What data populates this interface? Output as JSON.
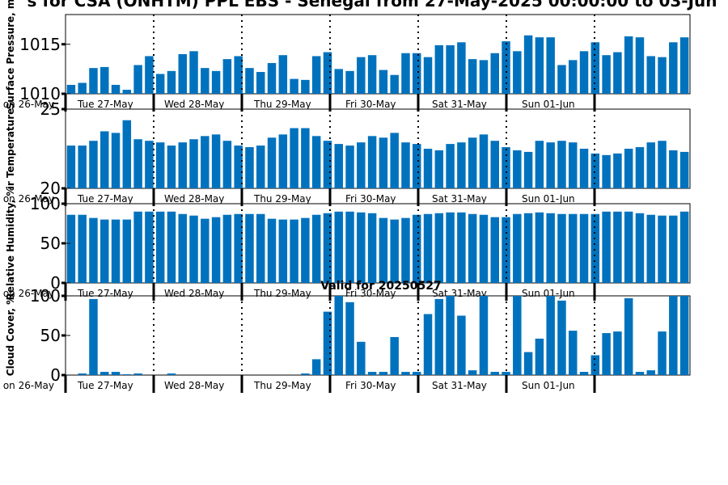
{
  "chart_data": {
    "type": "bar",
    "title": "s for CSA (ONHTM) PPL EBS  - Senegal from 27-May-2025 00:00:00 to 03-Jun",
    "bar_color": "#0072bd",
    "day_labels": [
      "Tue 27-May",
      "Wed 28-May",
      "Thu 29-May",
      "Fri 30-May",
      "Sat 31-May",
      "Sun 01-Jun"
    ],
    "first_tick_label": "on 26-May",
    "panels": [
      {
        "ylabel": "Surface Pressure, m",
        "ylim": [
          1010,
          1018
        ],
        "yticks": [
          "1010",
          "1015"
        ],
        "values": [
          1010.9,
          1011.1,
          1012.6,
          1012.7,
          1010.9,
          1010.4,
          1012.9,
          1013.8,
          1012.0,
          1012.3,
          1014.0,
          1014.3,
          1012.6,
          1012.3,
          1013.5,
          1013.8,
          1012.6,
          1012.2,
          1013.1,
          1013.9,
          1011.5,
          1011.4,
          1013.8,
          1014.2,
          1012.5,
          1012.3,
          1013.7,
          1013.9,
          1012.4,
          1011.9,
          1014.1,
          1014.1,
          1013.7,
          1014.9,
          1014.9,
          1015.2,
          1013.5,
          1013.4,
          1014.1,
          1015.3,
          1014.3,
          1015.9,
          1015.7,
          1015.7,
          1012.9,
          1013.4,
          1014.3,
          1015.2,
          1013.9,
          1014.2,
          1015.8,
          1015.7,
          1013.8,
          1013.7,
          1015.2,
          1015.7
        ]
      },
      {
        "ylabel": "ir Temperature",
        "ylim": [
          20,
          25
        ],
        "yticks": [
          "20",
          "25"
        ],
        "values": [
          22.7,
          22.7,
          23.0,
          23.6,
          23.5,
          24.3,
          23.1,
          23.0,
          22.9,
          22.7,
          22.9,
          23.1,
          23.3,
          23.4,
          23.0,
          22.7,
          22.6,
          22.7,
          23.2,
          23.4,
          23.8,
          23.8,
          23.3,
          23.0,
          22.8,
          22.7,
          22.9,
          23.3,
          23.2,
          23.5,
          22.9,
          22.8,
          22.5,
          22.4,
          22.8,
          22.9,
          23.2,
          23.4,
          23.0,
          22.6,
          22.4,
          22.3,
          23.0,
          22.9,
          23.0,
          22.9,
          22.5,
          22.2,
          22.1,
          22.2,
          22.5,
          22.6,
          22.9,
          23.0,
          22.4,
          22.3
        ]
      },
      {
        "ylabel": "Relative Humidity, %",
        "ylim": [
          0,
          100
        ],
        "yticks": [
          "0",
          "50",
          "100"
        ],
        "values": [
          86,
          86,
          82,
          80,
          80,
          80,
          90,
          90,
          90,
          90,
          87,
          85,
          81,
          83,
          86,
          87,
          87,
          87,
          81,
          80,
          80,
          82,
          86,
          88,
          90,
          90,
          89,
          88,
          82,
          80,
          82,
          86,
          87,
          88,
          89,
          89,
          87,
          86,
          83,
          83,
          87,
          88,
          89,
          88,
          87,
          87,
          87,
          87,
          90,
          90,
          90,
          88,
          86,
          85,
          85,
          90
        ]
      },
      {
        "ylabel": "Cloud Cover, %",
        "subtitle": "Valid for 20250527",
        "ylim": [
          0,
          100
        ],
        "yticks": [
          "0",
          "50",
          "100"
        ],
        "values": [
          0,
          2,
          96,
          4,
          4,
          1,
          2,
          0,
          0,
          2,
          0,
          0,
          0,
          0,
          0,
          0,
          0,
          0,
          0,
          0,
          0,
          2,
          20,
          80,
          100,
          92,
          42,
          4,
          4,
          48,
          4,
          4,
          77,
          96,
          100,
          75,
          6,
          100,
          4,
          4,
          100,
          29,
          46,
          100,
          94,
          56,
          4,
          25,
          53,
          55,
          97,
          4,
          6,
          55,
          100,
          100
        ]
      }
    ]
  }
}
